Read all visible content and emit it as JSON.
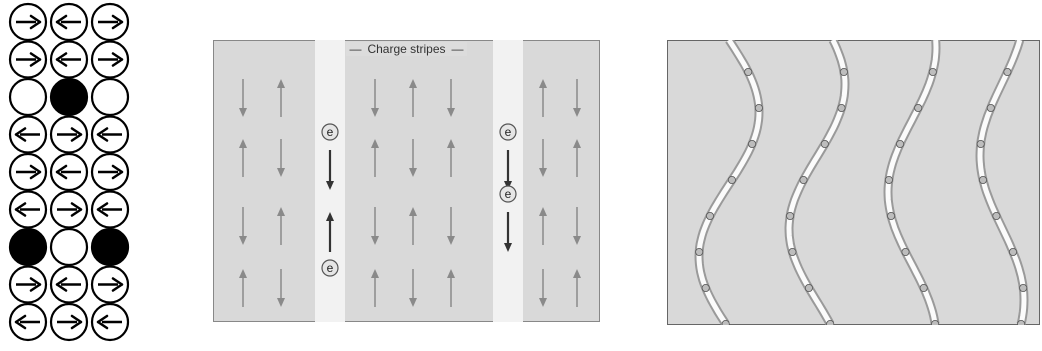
{
  "spin_lattice": {
    "rows": [
      [
        "right",
        "left",
        "right"
      ],
      [
        "right",
        "left",
        "right"
      ],
      [
        "empty",
        "hole",
        "empty"
      ],
      [
        "left",
        "right",
        "left"
      ],
      [
        "right",
        "left",
        "right"
      ],
      [
        "left",
        "right",
        "left"
      ],
      [
        "hole",
        "empty",
        "hole"
      ],
      [
        "right",
        "left",
        "right"
      ],
      [
        "left",
        "right",
        "left"
      ]
    ]
  },
  "charge_stripes": {
    "title": "Charge stripes",
    "electron_label": "e",
    "domain_columns": [
      [
        "down",
        "up",
        "down",
        "up"
      ],
      [
        "up",
        "down",
        "up",
        "down"
      ],
      [
        "down",
        "up",
        "down",
        "up"
      ],
      [
        "up",
        "down",
        "up",
        "down"
      ],
      [
        "down",
        "up",
        "down",
        "up"
      ],
      [
        "up",
        "down",
        "up",
        "down"
      ],
      [
        "down",
        "up",
        "down",
        "up"
      ]
    ],
    "stripe_electrons": [
      {
        "stripe": 1,
        "row": 1,
        "spin": "down",
        "label_above": true
      },
      {
        "stripe": 1,
        "row": 2,
        "spin": "up",
        "label_above": false
      },
      {
        "stripe": 2,
        "row": 1,
        "spin": "down",
        "label_above": true
      },
      {
        "stripe": 2,
        "row": 2,
        "spin": "down",
        "label_above": true
      }
    ]
  },
  "fluctuating_stripes": {
    "stripe_count": 4
  },
  "colors": {
    "panel_bg": "#d9d9d9",
    "stripe_bg": "#f2f2f2",
    "arrow_light": "#8a8a8a",
    "arrow_dark": "#333333",
    "ink": "#000000"
  }
}
